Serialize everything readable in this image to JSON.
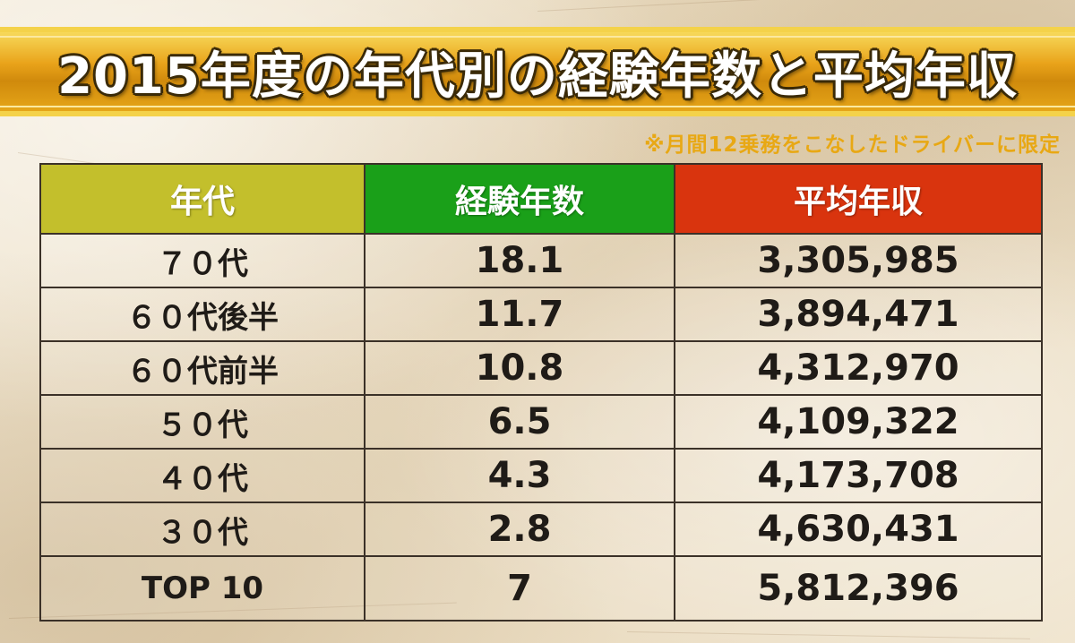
{
  "title": "2015年度の年代別の経験年数と平均年収",
  "note": "※月間12乗務をこなしたドライバーに限定",
  "colors": {
    "banner_gold": "#e9a31a",
    "note_text": "#e8a814",
    "header_age": "#c3bf2c",
    "header_experience": "#1aa019",
    "header_income": "#d9340e"
  },
  "chart_data": {
    "type": "table",
    "title": "2015年度の年代別の経験年数と平均年収",
    "note": "※月間12乗務をこなしたドライバーに限定",
    "columns": [
      "年代",
      "経験年数",
      "平均年収"
    ],
    "rows": [
      [
        "７０代",
        "18.1",
        "3,305,985"
      ],
      [
        "６０代後半",
        "11.7",
        "3,894,471"
      ],
      [
        "６０代前半",
        "10.8",
        "4,312,970"
      ],
      [
        "５０代",
        "6.5",
        "4,109,322"
      ],
      [
        "４０代",
        "4.3",
        "4,173,708"
      ],
      [
        "３０代",
        "2.8",
        "4,630,431"
      ],
      [
        "TOP 10",
        "7",
        "5,812,396"
      ]
    ]
  }
}
